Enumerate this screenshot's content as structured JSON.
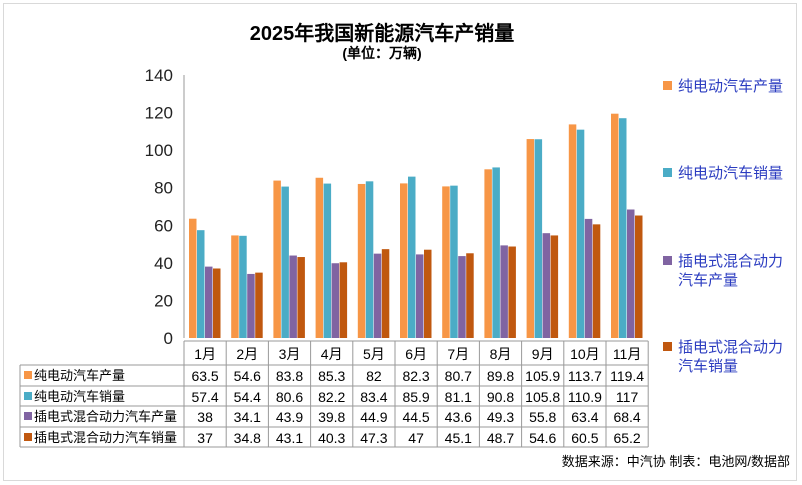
{
  "chart_data": {
    "type": "bar",
    "title": "2025年我国新能源汽车产销量",
    "subtitle": "(单位：万辆)",
    "categories": [
      "1月",
      "2月",
      "3月",
      "4月",
      "5月",
      "6月",
      "7月",
      "8月",
      "9月",
      "10月",
      "11月"
    ],
    "ylim": [
      0,
      140
    ],
    "yticks": [
      "0",
      "20",
      "40",
      "60",
      "80",
      "100",
      "120",
      "140"
    ],
    "grid": false,
    "legend_position": "right",
    "series": [
      {
        "name": "纯电动汽车产量",
        "color": "#F79646",
        "values": [
          63.5,
          54.6,
          83.8,
          85.3,
          82,
          82.3,
          80.7,
          89.8,
          105.9,
          113.7,
          119.4
        ]
      },
      {
        "name": "纯电动汽车销量",
        "color": "#4BACC6",
        "values": [
          57.4,
          54.4,
          80.6,
          82.2,
          83.4,
          85.9,
          81.1,
          90.8,
          105.8,
          110.9,
          117
        ]
      },
      {
        "name": "插电式混合动力汽车产量",
        "color": "#8064A2",
        "values": [
          38,
          34.1,
          43.9,
          39.8,
          44.9,
          44.5,
          43.6,
          49.3,
          55.8,
          63.4,
          68.4
        ]
      },
      {
        "name": "插电式混合动力汽车销量",
        "color": "#C0580F",
        "values": [
          37,
          34.8,
          43.1,
          40.3,
          47.3,
          47,
          45.1,
          48.7,
          54.6,
          60.5,
          65.2
        ]
      }
    ],
    "legend_labels": [
      [
        "纯电动汽车产量"
      ],
      [
        "纯电动汽车销量"
      ],
      [
        "插电式混合动力",
        "汽车产量"
      ],
      [
        "插电式混合动力",
        "汽车销量"
      ]
    ],
    "source": "数据来源：中汽协   制表：电池网/数据部"
  }
}
